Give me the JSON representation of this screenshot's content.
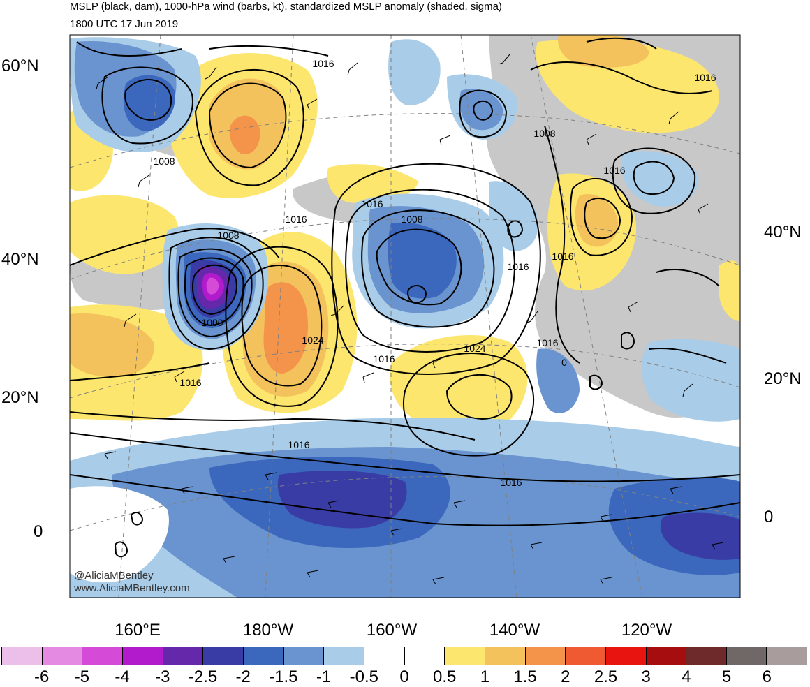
{
  "header": {
    "title": "MSLP (black, dam), 1000-hPa wind (barbs, kt), standardized MSLP anomaly (shaded, sigma)",
    "subtitle": "1800 UTC 17 Jun 2019"
  },
  "credits": {
    "line1": "@AliciaMBentley",
    "line2": "www.AliciaMBentley.com"
  },
  "axes": {
    "lat_left": [
      "60°N",
      "40°N",
      "20°N",
      "0"
    ],
    "lat_right": [
      "40°N",
      "20°N",
      "0"
    ],
    "lon_bottom": [
      "160°E",
      "180°W",
      "160°W",
      "140°W",
      "120°W"
    ]
  },
  "isobar_labels": [
    "1016",
    "1008",
    "1016",
    "1016",
    "1016",
    "1008",
    "1008",
    "1016",
    "1016",
    "1008",
    "1000",
    "1024",
    "1016",
    "1016",
    "1024",
    "1016",
    "0",
    "1016",
    "1016",
    "1016"
  ],
  "colorbar": {
    "colors": [
      "#ebbfe9",
      "#e48ae3",
      "#d64ad8",
      "#b21bcc",
      "#6628aa",
      "#3a3ca6",
      "#3b68bc",
      "#6a94cf",
      "#a9cce8",
      "#ffffff",
      "#ffffff",
      "#fde66e",
      "#f4c25c",
      "#f4944a",
      "#f05a33",
      "#e8140f",
      "#a60d0f",
      "#6e2a2a",
      "#706867",
      "#a89d9c"
    ],
    "labels": [
      "-6",
      "-5",
      "-4",
      "-3",
      "-2.5",
      "-2",
      "-1.5",
      "-1",
      "-0.5",
      "0",
      "0.5",
      "1",
      "1.5",
      "2",
      "2.5",
      "3",
      "4",
      "5",
      "6"
    ]
  },
  "colors": {
    "negative_light": "#a9cce8",
    "negative_mid": "#6a94cf",
    "negative_strong": "#3b68bc",
    "negative_deep": "#3a3ca6",
    "negative_extreme": "#6628aa",
    "positive_light": "#fde66e",
    "positive_mid": "#f4c25c",
    "positive_strong": "#f4944a",
    "land": "#c8c8c8"
  }
}
